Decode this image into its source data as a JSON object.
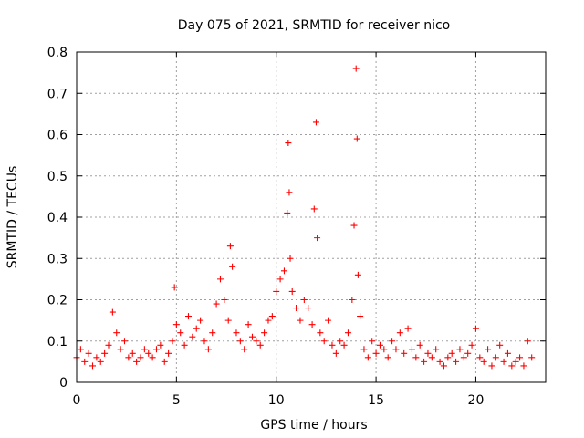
{
  "chart_data": {
    "type": "scatter",
    "title": "Day 075 of 2021, SRMTID for receiver nico",
    "xlabel": "GPS time / hours",
    "ylabel": "SRMTID / TECUs",
    "xlim": [
      0,
      23.5
    ],
    "ylim": [
      0,
      0.8
    ],
    "xticks": [
      "0",
      "5",
      "10",
      "15",
      "20"
    ],
    "yticks": [
      "0",
      "0.1",
      "0.2",
      "0.3",
      "0.4",
      "0.5",
      "0.6",
      "0.7",
      "0.8"
    ],
    "grid": true,
    "marker": "+",
    "color": "#ff0000",
    "series": [
      {
        "name": "SRMTID",
        "x": [
          0.0,
          0.2,
          0.4,
          0.6,
          0.8,
          1.0,
          1.2,
          1.4,
          1.6,
          1.8,
          2.0,
          2.2,
          2.4,
          2.6,
          2.8,
          3.0,
          3.2,
          3.4,
          3.6,
          3.8,
          4.0,
          4.2,
          4.4,
          4.6,
          4.8,
          4.9,
          5.0,
          5.2,
          5.4,
          5.6,
          5.8,
          6.0,
          6.2,
          6.4,
          6.6,
          6.8,
          7.0,
          7.2,
          7.4,
          7.6,
          7.7,
          7.8,
          8.0,
          8.2,
          8.4,
          8.6,
          8.8,
          9.0,
          9.2,
          9.4,
          9.6,
          9.8,
          10.0,
          10.2,
          10.4,
          10.55,
          10.6,
          10.65,
          10.7,
          10.8,
          11.0,
          11.2,
          11.4,
          11.6,
          11.8,
          11.9,
          12.0,
          12.05,
          12.2,
          12.4,
          12.6,
          12.8,
          13.0,
          13.2,
          13.4,
          13.6,
          13.8,
          13.9,
          14.0,
          14.05,
          14.1,
          14.2,
          14.4,
          14.6,
          14.8,
          15.0,
          15.2,
          15.4,
          15.6,
          15.8,
          16.0,
          16.2,
          16.4,
          16.6,
          16.8,
          17.0,
          17.2,
          17.4,
          17.6,
          17.8,
          18.0,
          18.2,
          18.4,
          18.6,
          18.8,
          19.0,
          19.2,
          19.4,
          19.6,
          19.8,
          20.0,
          20.2,
          20.4,
          20.6,
          20.8,
          21.0,
          21.2,
          21.4,
          21.6,
          21.8,
          22.0,
          22.2,
          22.4,
          22.6,
          22.8
        ],
        "y": [
          0.06,
          0.08,
          0.05,
          0.07,
          0.04,
          0.06,
          0.05,
          0.07,
          0.09,
          0.17,
          0.12,
          0.08,
          0.1,
          0.06,
          0.07,
          0.05,
          0.06,
          0.08,
          0.07,
          0.06,
          0.08,
          0.09,
          0.05,
          0.07,
          0.1,
          0.23,
          0.14,
          0.12,
          0.09,
          0.16,
          0.11,
          0.13,
          0.15,
          0.1,
          0.08,
          0.12,
          0.19,
          0.25,
          0.2,
          0.15,
          0.33,
          0.28,
          0.12,
          0.1,
          0.08,
          0.14,
          0.11,
          0.1,
          0.09,
          0.12,
          0.15,
          0.16,
          0.22,
          0.25,
          0.27,
          0.41,
          0.58,
          0.46,
          0.3,
          0.22,
          0.18,
          0.15,
          0.2,
          0.18,
          0.14,
          0.42,
          0.63,
          0.35,
          0.12,
          0.1,
          0.15,
          0.09,
          0.07,
          0.1,
          0.09,
          0.12,
          0.2,
          0.38,
          0.76,
          0.59,
          0.26,
          0.16,
          0.08,
          0.06,
          0.1,
          0.07,
          0.09,
          0.08,
          0.06,
          0.1,
          0.08,
          0.12,
          0.07,
          0.13,
          0.08,
          0.06,
          0.09,
          0.05,
          0.07,
          0.06,
          0.08,
          0.05,
          0.04,
          0.06,
          0.07,
          0.05,
          0.08,
          0.06,
          0.07,
          0.09,
          0.13,
          0.06,
          0.05,
          0.08,
          0.04,
          0.06,
          0.09,
          0.05,
          0.07,
          0.04,
          0.05,
          0.06,
          0.04,
          0.1,
          0.06
        ]
      }
    ]
  }
}
